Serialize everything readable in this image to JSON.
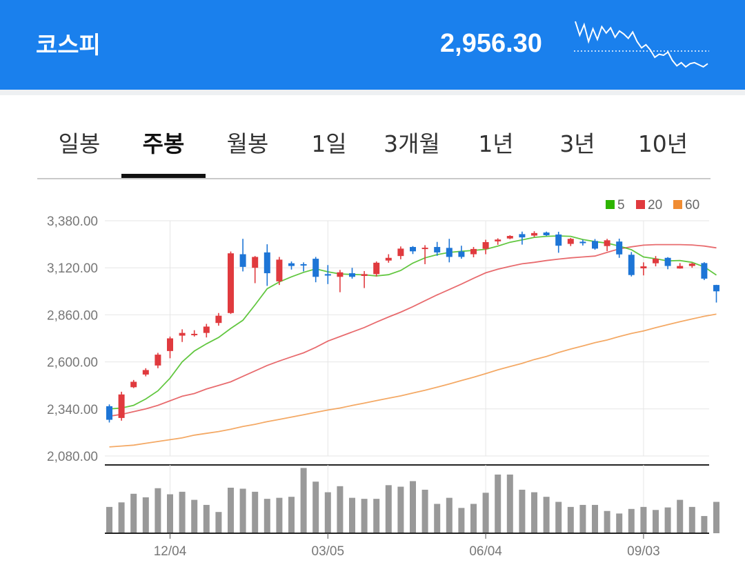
{
  "header": {
    "title": "코스피",
    "price": "2,956.30",
    "sparkline": [
      3245,
      3180,
      3230,
      3150,
      3210,
      3160,
      3220,
      3190,
      3215,
      3170,
      3200,
      3185,
      3165,
      3195,
      3150,
      3120,
      3135,
      3110,
      3075,
      3090,
      3085,
      3100,
      3060,
      3035,
      3050,
      3030,
      3045,
      3050,
      3040,
      3030,
      3045
    ],
    "sparkline_ref": 3105
  },
  "tabs": [
    {
      "label": "일봉",
      "active": false
    },
    {
      "label": "주봉",
      "active": true
    },
    {
      "label": "월봉",
      "active": false
    },
    {
      "label": "1일",
      "active": false
    },
    {
      "label": "3개월",
      "active": false
    },
    {
      "label": "1년",
      "active": false
    },
    {
      "label": "3년",
      "active": false
    },
    {
      "label": "10년",
      "active": false
    }
  ],
  "colors": {
    "accent": "#1a80ed",
    "up": "#e03a3e",
    "down": "#1d75d6",
    "ma5": "#2db400",
    "ma20": "#e03a3e",
    "ma60": "#f08c32",
    "volume": "#999999"
  },
  "chart_data": {
    "type": "candlestick",
    "ylim": [
      2080,
      3380
    ],
    "y_ticks": [
      "3,380.00",
      "3,120.00",
      "2,860.00",
      "2,600.00",
      "2,340.00",
      "2,080.00"
    ],
    "y_tick_values": [
      3380,
      3120,
      2860,
      2600,
      2340,
      2080
    ],
    "x_ticks": [
      {
        "label": "12/04",
        "index": 5
      },
      {
        "label": "03/05",
        "index": 18
      },
      {
        "label": "06/04",
        "index": 31
      },
      {
        "label": "09/03",
        "index": 44
      }
    ],
    "legend": [
      {
        "label": "5",
        "color": "#2db400"
      },
      {
        "label": "20",
        "color": "#e03a3e"
      },
      {
        "label": "60",
        "color": "#f08c32"
      }
    ],
    "legend_position": "top-right",
    "ohlc": [
      [
        2355,
        2365,
        2265,
        2280
      ],
      [
        2290,
        2435,
        2275,
        2420
      ],
      [
        2460,
        2500,
        2455,
        2490
      ],
      [
        2530,
        2565,
        2520,
        2555
      ],
      [
        2580,
        2650,
        2565,
        2640
      ],
      [
        2660,
        2740,
        2620,
        2730
      ],
      [
        2745,
        2780,
        2710,
        2760
      ],
      [
        2750,
        2775,
        2740,
        2755
      ],
      [
        2760,
        2810,
        2735,
        2795
      ],
      [
        2815,
        2870,
        2800,
        2855
      ],
      [
        2870,
        3210,
        2865,
        3200
      ],
      [
        3195,
        3280,
        3100,
        3125
      ],
      [
        3120,
        3185,
        3035,
        3180
      ],
      [
        3205,
        3250,
        3020,
        3090
      ],
      [
        3045,
        3180,
        3025,
        3165
      ],
      [
        3145,
        3155,
        3110,
        3130
      ],
      [
        3140,
        3150,
        3100,
        3138
      ],
      [
        3170,
        3180,
        3040,
        3070
      ],
      [
        3085,
        3135,
        3030,
        3077
      ],
      [
        3070,
        3108,
        2985,
        3095
      ],
      [
        3090,
        3120,
        3060,
        3070
      ],
      [
        3075,
        3102,
        3008,
        3085
      ],
      [
        3085,
        3155,
        3072,
        3148
      ],
      [
        3160,
        3195,
        3148,
        3175
      ],
      [
        3185,
        3238,
        3167,
        3226
      ],
      [
        3235,
        3240,
        3196,
        3211
      ],
      [
        3225,
        3245,
        3140,
        3231
      ],
      [
        3235,
        3263,
        3186,
        3205
      ],
      [
        3230,
        3280,
        3150,
        3180
      ],
      [
        3210,
        3242,
        3170,
        3180
      ],
      [
        3195,
        3235,
        3178,
        3224
      ],
      [
        3225,
        3275,
        3195,
        3262
      ],
      [
        3266,
        3283,
        3247,
        3276
      ],
      [
        3282,
        3300,
        3278,
        3296
      ],
      [
        3306,
        3320,
        3248,
        3288
      ],
      [
        3298,
        3322,
        3290,
        3312
      ],
      [
        3315,
        3320,
        3296,
        3300
      ],
      [
        3304,
        3319,
        3203,
        3242
      ],
      [
        3252,
        3285,
        3240,
        3280
      ],
      [
        3264,
        3275,
        3243,
        3256
      ],
      [
        3268,
        3279,
        3220,
        3226
      ],
      [
        3240,
        3280,
        3212,
        3272
      ],
      [
        3265,
        3281,
        3175,
        3194
      ],
      [
        3192,
        3207,
        3072,
        3080
      ],
      [
        3117,
        3150,
        3078,
        3128
      ],
      [
        3145,
        3185,
        3128,
        3170
      ],
      [
        3175,
        3179,
        3112,
        3130
      ],
      [
        3116,
        3146,
        3115,
        3130
      ],
      [
        3130,
        3148,
        3120,
        3143
      ],
      [
        3146,
        3151,
        3052,
        3060
      ],
      [
        3025,
        3026,
        2928,
        2990
      ]
    ],
    "ma5": [
      2340,
      2345,
      2360,
      2395,
      2440,
      2510,
      2600,
      2660,
      2700,
      2735,
      2785,
      2830,
      2915,
      3004,
      3042,
      3070,
      3095,
      3114,
      3098,
      3086,
      3083,
      3081,
      3075,
      3082,
      3105,
      3146,
      3175,
      3193,
      3205,
      3211,
      3216,
      3222,
      3240,
      3261,
      3274,
      3288,
      3294,
      3296,
      3294,
      3276,
      3265,
      3256,
      3240,
      3220,
      3180,
      3170,
      3158,
      3160,
      3150,
      3125,
      3080
    ],
    "ma20": [
      2300,
      2310,
      2325,
      2340,
      2360,
      2385,
      2410,
      2425,
      2450,
      2470,
      2490,
      2520,
      2550,
      2580,
      2605,
      2628,
      2650,
      2680,
      2715,
      2740,
      2765,
      2790,
      2820,
      2848,
      2875,
      2905,
      2938,
      2970,
      3000,
      3030,
      3062,
      3092,
      3112,
      3128,
      3142,
      3150,
      3160,
      3168,
      3175,
      3180,
      3185,
      3205,
      3225,
      3236,
      3245,
      3248,
      3248,
      3248,
      3246,
      3240,
      3230
    ],
    "ma60": [
      2130,
      2135,
      2140,
      2150,
      2160,
      2170,
      2180,
      2195,
      2205,
      2215,
      2228,
      2243,
      2255,
      2270,
      2282,
      2295,
      2308,
      2321,
      2334,
      2345,
      2359,
      2372,
      2386,
      2399,
      2412,
      2428,
      2443,
      2460,
      2478,
      2497,
      2515,
      2535,
      2556,
      2574,
      2592,
      2613,
      2630,
      2652,
      2671,
      2688,
      2706,
      2721,
      2740,
      2757,
      2771,
      2789,
      2806,
      2822,
      2837,
      2852,
      2864
    ],
    "volume": [
      52,
      61,
      78,
      71,
      89,
      77,
      82,
      66,
      56,
      42,
      90,
      88,
      82,
      68,
      70,
      72,
      129,
      102,
      81,
      93,
      70,
      68,
      68,
      95,
      92,
      103,
      86,
      58,
      70,
      50,
      58,
      80,
      116,
      116,
      86,
      81,
      72,
      62,
      52,
      56,
      56,
      44,
      39,
      48,
      52,
      46,
      51,
      66,
      52,
      34,
      62
    ]
  }
}
